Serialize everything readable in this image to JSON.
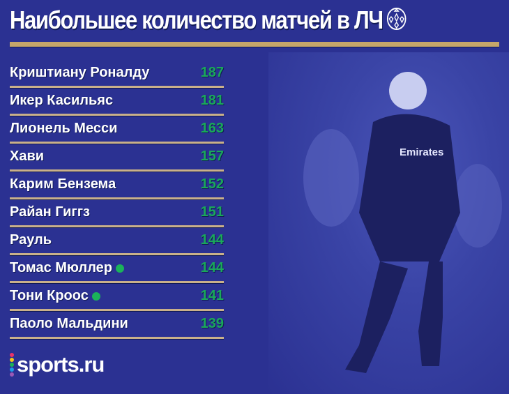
{
  "title": "Наибольшее количество матчей в ЛЧ",
  "colors": {
    "background": "#2b3192",
    "divider": "#c6a66a",
    "value": "#1aa85a",
    "active_dot": "#1bb35a"
  },
  "rows": [
    {
      "name": "Криштиану Роналду",
      "value": "187",
      "active": false
    },
    {
      "name": "Икер Касильяс",
      "value": "181",
      "active": false
    },
    {
      "name": "Лионель Месси",
      "value": "163",
      "active": false
    },
    {
      "name": "Хави",
      "value": "157",
      "active": false
    },
    {
      "name": "Карим Бензема",
      "value": "152",
      "active": false
    },
    {
      "name": "Райан Гиггз",
      "value": "151",
      "active": false
    },
    {
      "name": "Рауль",
      "value": "144",
      "active": false
    },
    {
      "name": "Томас Мюллер",
      "value": "144",
      "active": true
    },
    {
      "name": "Тони Кроос",
      "value": "141",
      "active": true
    },
    {
      "name": "Паоло Мальдини",
      "value": "139",
      "active": false
    }
  ],
  "logo": {
    "text": "sports.ru",
    "dot_colors": [
      "#e8336b",
      "#f5c518",
      "#1bb35a",
      "#1e9be8",
      "#9b59b6"
    ]
  }
}
